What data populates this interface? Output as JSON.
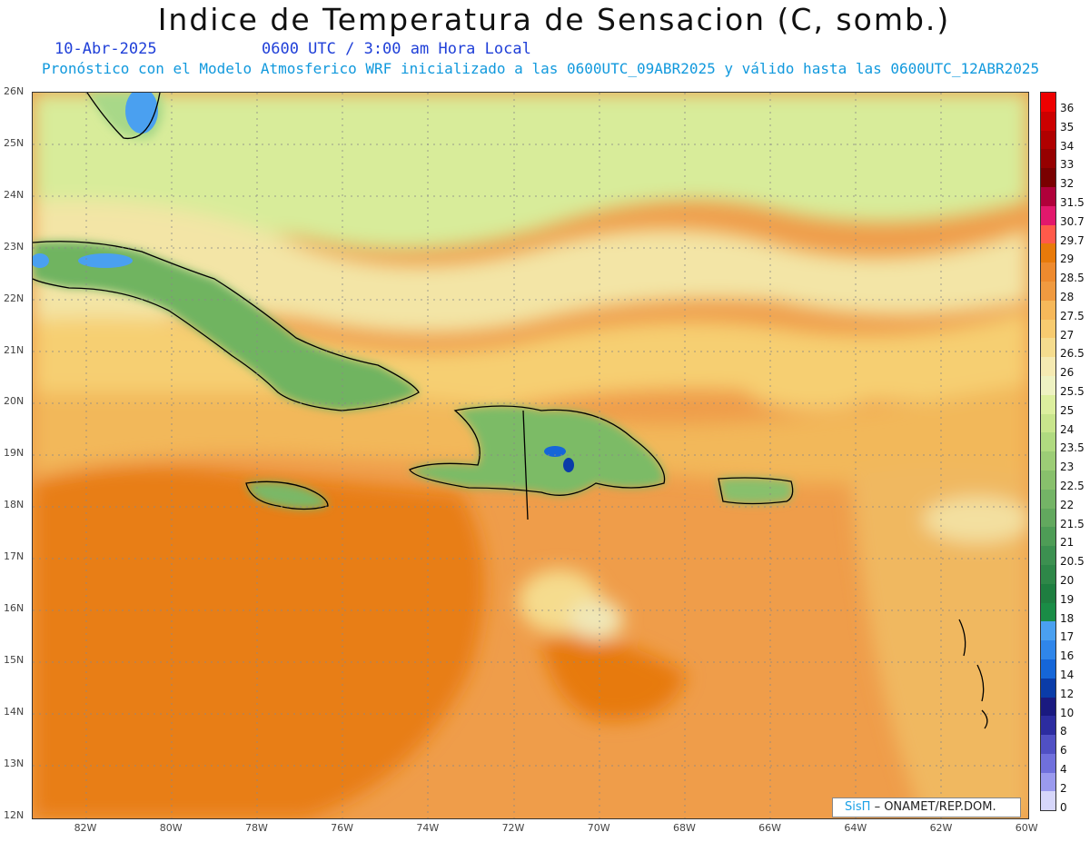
{
  "header": {
    "title": "Indice de Temperatura de Sensacion (C, somb.)",
    "date": "10-Abr-2025",
    "time": "0600 UTC / 3:00 am Hora Local",
    "model_info": "Pronóstico con el Modelo Atmosferico WRF inicializado a las 0600UTC_09ABR2025 y válido hasta las  0600UTC_12ABR2025"
  },
  "map": {
    "lat_labels": [
      "26N",
      "25N",
      "24N",
      "23N",
      "22N",
      "21N",
      "20N",
      "19N",
      "18N",
      "17N",
      "16N",
      "15N",
      "14N",
      "13N",
      "12N"
    ],
    "lon_labels": [
      "82W",
      "80W",
      "78W",
      "76W",
      "74W",
      "72W",
      "70W",
      "68W",
      "66W",
      "64W",
      "62W",
      "60W"
    ],
    "credit_brand": "SisΠ",
    "credit_text": "– ONAMET/REP.DOM."
  },
  "legend": {
    "values": [
      "36",
      "35",
      "34",
      "33",
      "32",
      "31.5",
      "30.7",
      "29.7",
      "29",
      "28.5",
      "28",
      "27.5",
      "27",
      "26.5",
      "26",
      "25.5",
      "25",
      "24",
      "23.5",
      "23",
      "22.5",
      "22",
      "21.5",
      "21",
      "20.5",
      "20",
      "19",
      "18",
      "17",
      "16",
      "14",
      "12",
      "10",
      "8",
      "6",
      "4",
      "2",
      "0"
    ],
    "colors": [
      "#ee0000",
      "#cc0000",
      "#b00000",
      "#960000",
      "#7a0000",
      "#b0003a",
      "#e2186c",
      "#ff5a4a",
      "#e87a0a",
      "#ee8a2e",
      "#f09a40",
      "#f6b85a",
      "#f7cb70",
      "#f5dc8e",
      "#f5eab2",
      "#eef2c2",
      "#dcef9e",
      "#c8e58c",
      "#b0da80",
      "#9ccd76",
      "#88c06c",
      "#74b466",
      "#62a85e",
      "#4e9c56",
      "#3c9050",
      "#2e8748",
      "#1e7e40",
      "#1a8c46",
      "#4aa0f0",
      "#2f86ea",
      "#1566d8",
      "#0a3ca8",
      "#1a1a80",
      "#2c2ca0",
      "#5050c4",
      "#7070dc",
      "#9a9aee",
      "#d6d6fa"
    ]
  }
}
